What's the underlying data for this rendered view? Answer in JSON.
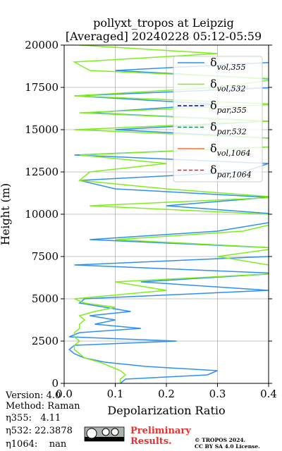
{
  "chart_data": {
    "type": "line",
    "orientation": "vertical",
    "title": "pollyxt_tropos at Leipzig",
    "subtitle": "[Averaged] 20240228 05:12-05:59",
    "x_label": "Depolarization Ratio",
    "y_label": "Height (m)",
    "xlim": [
      0,
      0.4
    ],
    "xticks": [
      {
        "value": 0,
        "label": "0.0"
      },
      0.1,
      0.2,
      0.3,
      {
        "value": 0.4,
        "label": "0.4"
      }
    ],
    "ylim": [
      0,
      20000
    ],
    "yticks": [
      0,
      2500,
      5000,
      7500,
      10000,
      12500,
      15000,
      17500,
      20000
    ],
    "grid": true,
    "legend": "upper right",
    "y": [
      0,
      250,
      500,
      750,
      1000,
      1250,
      1500,
      1750,
      2000,
      2250,
      2500,
      2750,
      3000,
      3250,
      3500,
      3750,
      4000,
      4250,
      4500,
      4750,
      5000,
      5500,
      6000,
      6500,
      7000,
      7500,
      8000,
      8500,
      9000,
      9500,
      10000,
      10500,
      11000,
      11500,
      12000,
      12500,
      13000,
      13500,
      14000,
      14500,
      15000,
      15500,
      16000,
      16500,
      17000,
      17500,
      18000,
      18500,
      19000,
      19500,
      20000
    ],
    "series": [
      {
        "name": "δvol,355",
        "color": "#2e8ff5",
        "dash": false,
        "values": [
          0.11,
          0.12,
          0.28,
          0.3,
          0.16,
          0.08,
          0.04,
          0.02,
          0.01,
          0.02,
          0.22,
          0.01,
          0.03,
          0.15,
          0.06,
          0.1,
          0.05,
          0.13,
          0.08,
          0.03,
          0.04,
          0.4,
          0.15,
          0.42,
          0.02,
          0.4,
          0.42,
          0.05,
          0.3,
          0.4,
          0.42,
          0.2,
          0.4,
          0.1,
          0.03,
          0.35,
          0.4,
          0.02,
          0.42,
          0.4,
          0.1,
          0.4,
          0.05,
          0.3,
          0.02,
          0.42,
          0.4,
          0.1,
          0.42,
          0.4,
          0.42
        ]
      },
      {
        "name": "δvol,532",
        "color": "#7fef1e",
        "dash": false,
        "values": [
          0.11,
          0.11,
          0.12,
          0.11,
          0.09,
          0.07,
          0.04,
          0.03,
          0.02,
          0.02,
          0.03,
          0.02,
          0.02,
          0.03,
          0.03,
          0.04,
          0.03,
          0.06,
          0.1,
          0.04,
          0.02,
          0.2,
          0.1,
          0.42,
          0.4,
          0.3,
          0.42,
          0.1,
          0.35,
          0.42,
          0.4,
          0.05,
          0.42,
          0.2,
          0.03,
          0.05,
          0.2,
          0.03,
          0.42,
          0.4,
          0.02,
          0.4,
          0.03,
          0.42,
          0.02,
          0.3,
          0.42,
          0.05,
          0.02,
          0.3,
          0.03
        ]
      },
      {
        "name": "δpar,355",
        "color": "#0000cc",
        "dash": true,
        "values": [
          null,
          null,
          null,
          null,
          null,
          null,
          null,
          null,
          null,
          null,
          null,
          null,
          null,
          null,
          null,
          null,
          null,
          null,
          null,
          null,
          null,
          null,
          null,
          null,
          null,
          null,
          null,
          null,
          null,
          null,
          null,
          null,
          null,
          null,
          null,
          null,
          null,
          null,
          null,
          null,
          null,
          null,
          null,
          null,
          null,
          null,
          null,
          null,
          null,
          null,
          null
        ]
      },
      {
        "name": "δpar,532",
        "color": "#1f8a4c",
        "dash": true,
        "values": [
          null,
          null,
          null,
          null,
          null,
          null,
          null,
          null,
          null,
          null,
          null,
          null,
          null,
          null,
          null,
          null,
          null,
          null,
          null,
          null,
          null,
          null,
          null,
          null,
          null,
          null,
          null,
          null,
          null,
          null,
          null,
          null,
          null,
          null,
          null,
          null,
          null,
          null,
          null,
          null,
          null,
          null,
          null,
          null,
          null,
          null,
          null,
          null,
          null,
          null,
          null
        ]
      },
      {
        "name": "δvol,1064",
        "color": "#ff6a3d",
        "dash": false,
        "values": [
          null,
          null,
          null,
          null,
          null,
          null,
          null,
          null,
          null,
          null,
          null,
          null,
          null,
          null,
          null,
          null,
          null,
          null,
          null,
          null,
          null,
          null,
          null,
          null,
          null,
          null,
          null,
          null,
          null,
          null,
          null,
          null,
          null,
          null,
          null,
          null,
          null,
          null,
          null,
          null,
          null,
          null,
          null,
          null,
          null,
          null,
          null,
          null,
          null,
          null,
          null
        ]
      },
      {
        "name": "δpar,1064",
        "color": "#e0202a",
        "dash": true,
        "values": [
          null,
          null,
          null,
          null,
          null,
          null,
          null,
          null,
          null,
          null,
          null,
          null,
          null,
          null,
          null,
          null,
          null,
          null,
          null,
          null,
          null,
          null,
          null,
          null,
          null,
          null,
          null,
          null,
          null,
          null,
          null,
          null,
          null,
          null,
          null,
          null,
          null,
          null,
          null,
          null,
          null,
          null,
          null,
          null,
          null,
          null,
          null,
          null,
          null,
          null,
          null
        ]
      }
    ],
    "notes": [
      "Version: 4.0",
      "Method: Raman",
      "η355:   4.11",
      "η532: 22.3878",
      "η1064:    nan"
    ],
    "badge": [
      "Preliminary",
      "Results."
    ],
    "copyright": [
      "© TROPOS 2024.",
      "CC BY SA 4.0 License."
    ]
  }
}
